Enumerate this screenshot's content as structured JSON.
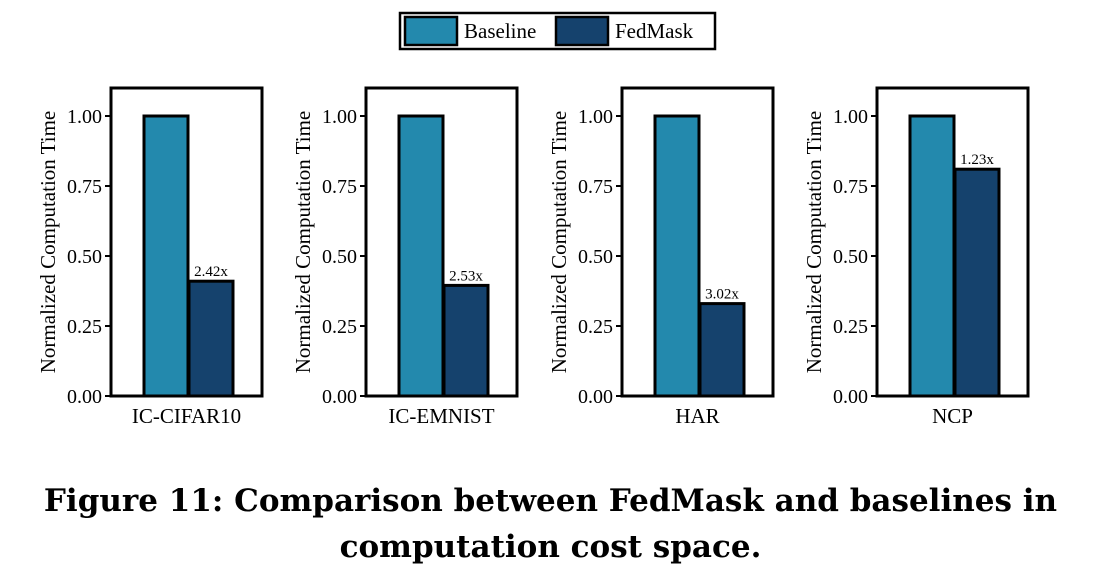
{
  "chart_data": [
    {
      "type": "bar",
      "categories": [
        "IC-CIFAR10"
      ],
      "series": [
        {
          "name": "Baseline",
          "values": [
            1.0
          ]
        },
        {
          "name": "FedMask",
          "values": [
            0.41
          ]
        }
      ],
      "data_labels": [
        "2.42x"
      ],
      "ylabel": "Normalized Computation Time",
      "ylim": [
        0,
        1.1
      ],
      "yticks": [
        "0.00",
        "0.25",
        "0.50",
        "0.75",
        "1.00"
      ],
      "grid": false
    },
    {
      "type": "bar",
      "categories": [
        "IC-EMNIST"
      ],
      "series": [
        {
          "name": "Baseline",
          "values": [
            1.0
          ]
        },
        {
          "name": "FedMask",
          "values": [
            0.395
          ]
        }
      ],
      "data_labels": [
        "2.53x"
      ],
      "ylabel": "Normalized Computation Time",
      "ylim": [
        0,
        1.1
      ],
      "yticks": [
        "0.00",
        "0.25",
        "0.50",
        "0.75",
        "1.00"
      ],
      "grid": false
    },
    {
      "type": "bar",
      "categories": [
        "HAR"
      ],
      "series": [
        {
          "name": "Baseline",
          "values": [
            1.0
          ]
        },
        {
          "name": "FedMask",
          "values": [
            0.33
          ]
        }
      ],
      "data_labels": [
        "3.02x"
      ],
      "ylabel": "Normalized Computation Time",
      "ylim": [
        0,
        1.1
      ],
      "yticks": [
        "0.00",
        "0.25",
        "0.50",
        "0.75",
        "1.00"
      ],
      "grid": false
    },
    {
      "type": "bar",
      "categories": [
        "NCP"
      ],
      "series": [
        {
          "name": "Baseline",
          "values": [
            1.0
          ]
        },
        {
          "name": "FedMask",
          "values": [
            0.81
          ]
        }
      ],
      "data_labels": [
        "1.23x"
      ],
      "ylabel": "Normalized Computation Time",
      "ylim": [
        0,
        1.1
      ],
      "yticks": [
        "0.00",
        "0.25",
        "0.50",
        "0.75",
        "1.00"
      ],
      "grid": false
    }
  ],
  "legend": {
    "placement": "top-center",
    "entries": [
      "Baseline",
      "FedMask"
    ]
  },
  "colors": {
    "Baseline": "#2389ad",
    "FedMask": "#15426d",
    "edge": "#000000"
  },
  "caption": {
    "line1": "Figure 11: Comparison between FedMask and baselines in",
    "line2": "computation cost space."
  }
}
